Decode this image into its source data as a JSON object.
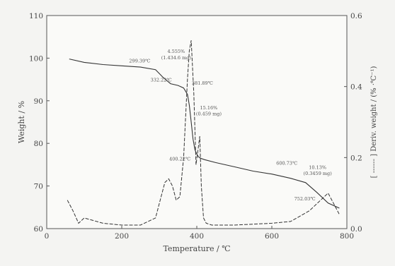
{
  "chart_data": {
    "type": "line",
    "title": "",
    "xlabel": "Temperature / ℃",
    "ylabel_left": "Weight / %",
    "ylabel_right": "[ ------ ] Deriv. weight / (% ·℃⁻¹)",
    "xlim": [
      0,
      800
    ],
    "ylim_left": [
      60,
      110
    ],
    "ylim_right": [
      0.0,
      0.6
    ],
    "x_ticks": [
      "0",
      "200",
      "400",
      "600",
      "800"
    ],
    "y_ticks_left": [
      "60",
      "70",
      "80",
      "90",
      "100",
      "110"
    ],
    "y_ticks_right": [
      "0.0",
      "0.2",
      "0.4",
      "0.6"
    ],
    "grid": false,
    "series": [
      {
        "axis": "left",
        "x": [
          60,
          100,
          150,
          200,
          250,
          290,
          310,
          330,
          350,
          365,
          375,
          380,
          385,
          390,
          395,
          400,
          405,
          410,
          420,
          450,
          500,
          550,
          600,
          650,
          690,
          720,
          750,
          780
        ],
        "y": [
          99.8,
          99.0,
          98.5,
          98.2,
          97.9,
          97.3,
          95.5,
          94.0,
          93.6,
          93.0,
          91.5,
          89.0,
          85.0,
          81.0,
          78.5,
          77.5,
          76.8,
          76.5,
          76.2,
          75.5,
          74.5,
          73.5,
          72.8,
          71.8,
          70.8,
          68.5,
          66.0,
          64.8
        ]
      },
      {
        "axis": "right",
        "x": [
          55,
          70,
          85,
          100,
          150,
          200,
          250,
          290,
          305,
          315,
          325,
          335,
          345,
          355,
          365,
          375,
          380,
          385,
          392,
          398,
          403,
          408,
          412,
          418,
          425,
          440,
          500,
          600,
          650,
          700,
          730,
          750,
          765,
          780
        ],
        "y": [
          0.08,
          0.05,
          0.015,
          0.03,
          0.015,
          0.01,
          0.01,
          0.03,
          0.09,
          0.13,
          0.14,
          0.12,
          0.08,
          0.09,
          0.2,
          0.42,
          0.5,
          0.53,
          0.38,
          0.18,
          0.22,
          0.26,
          0.12,
          0.03,
          0.015,
          0.01,
          0.01,
          0.015,
          0.02,
          0.05,
          0.08,
          0.1,
          0.07,
          0.04
        ]
      }
    ],
    "annotations": [
      {
        "text": "299.39℃",
        "x": 248,
        "y_left": 99.0
      },
      {
        "text": "4.555%",
        "x": 345,
        "y_left": 101.2
      },
      {
        "text": "(1.434.6 mg)",
        "x": 345,
        "y_left": 99.7
      },
      {
        "text": "332.22℃",
        "x": 305,
        "y_left": 94.5
      },
      {
        "text": "381.89℃",
        "x": 415,
        "y_left": 93.8
      },
      {
        "text": "15.16%",
        "x": 432,
        "y_left": 88.0
      },
      {
        "text": "(0.459 mg)",
        "x": 432,
        "y_left": 86.6
      },
      {
        "text": "400.22℃",
        "x": 355,
        "y_left": 76.0
      },
      {
        "text": "600.73℃",
        "x": 640,
        "y_left": 75.0
      },
      {
        "text": "10.13%",
        "x": 722,
        "y_left": 74.0
      },
      {
        "text": "(0.3459 mg)",
        "x": 722,
        "y_left": 72.6
      },
      {
        "text": "752.03℃",
        "x": 688,
        "y_left": 66.6
      }
    ]
  }
}
